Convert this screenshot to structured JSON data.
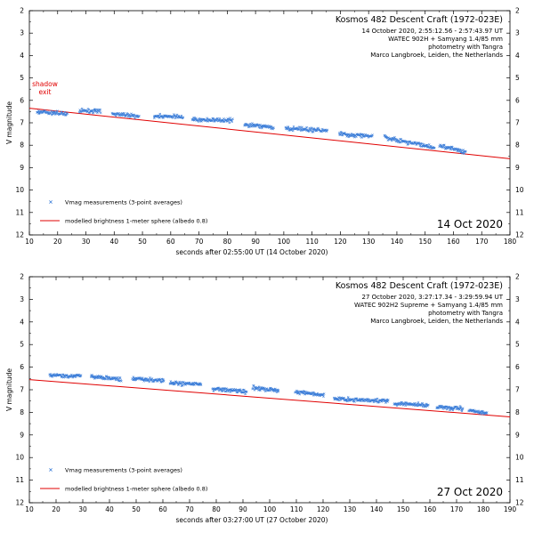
{
  "colors": {
    "measurement": "#3b7dd8",
    "model": "#e00000",
    "axis": "#000000"
  },
  "chart_data": [
    {
      "type": "scatter",
      "title": "Kosmos 482 Descent Craft  (1972-023E)",
      "info_lines": [
        "14 October 2020, 2:55:12.56 - 2:57:43.97 UT",
        "WATEC 902H  + Samyang 1.4/85 mm",
        "photometry with Tangra",
        "Marco Langbroek, Leiden, the Netherlands"
      ],
      "date_label": "14 Oct 2020",
      "xlabel": "seconds after 02:55:00 UT (14 October 2020)",
      "ylabel": "V magnitude",
      "xlim": [
        10,
        180
      ],
      "ylim": [
        12,
        2
      ],
      "xticks": [
        "10",
        "20",
        "30",
        "40",
        "50",
        "60",
        "70",
        "80",
        "90",
        "100",
        "110",
        "120",
        "130",
        "140",
        "150",
        "160",
        "170",
        "180"
      ],
      "yticks": [
        "2",
        "3",
        "4",
        "5",
        "6",
        "7",
        "8",
        "9",
        "10",
        "11",
        "12"
      ],
      "annotation": {
        "text": [
          "shadow",
          "exit"
        ],
        "x": 15.5,
        "y": 5.5
      },
      "legend": [
        {
          "marker": "x",
          "label": "Vmag measurements (3-point averages)"
        },
        {
          "marker": "line",
          "label": "modelled brightness 1-meter sphere (albedo 0.8)"
        }
      ],
      "series": [
        {
          "name": "Vmag measurements (3-point averages)",
          "kind": "points",
          "clusters": [
            {
              "x_range": [
                12.6,
                23.5
              ],
              "y_start": 6.5,
              "y_end": 6.6
            },
            {
              "x_range": [
                27.6,
                35.3
              ],
              "y_start": 6.45,
              "y_end": 6.5
            },
            {
              "x_range": [
                39.2,
                48.9
              ],
              "y_start": 6.6,
              "y_end": 6.7
            },
            {
              "x_range": [
                54.0,
                64.5
              ],
              "y_start": 6.7,
              "y_end": 6.75
            },
            {
              "x_range": [
                67.5,
                82.0
              ],
              "y_start": 6.85,
              "y_end": 6.9
            },
            {
              "x_range": [
                86.0,
                96.5
              ],
              "y_start": 7.1,
              "y_end": 7.2
            },
            {
              "x_range": [
                100.5,
                115.5
              ],
              "y_start": 7.25,
              "y_end": 7.35
            },
            {
              "x_range": [
                119.5,
                131.5
              ],
              "y_start": 7.5,
              "y_end": 7.6
            },
            {
              "x_range": [
                135.5,
                153.5
              ],
              "y_start": 7.65,
              "y_end": 8.1
            },
            {
              "x_range": [
                155.0,
                164.5
              ],
              "y_start": 8.0,
              "y_end": 8.3
            }
          ]
        },
        {
          "name": "modelled brightness 1-meter sphere (albedo 0.8)",
          "kind": "line",
          "x": [
            10,
            180
          ],
          "y": [
            6.35,
            8.6
          ]
        }
      ]
    },
    {
      "type": "scatter",
      "title": "Kosmos 482 Descent Craft  (1972-023E)",
      "info_lines": [
        "27 October 2020, 3:27:17.34 - 3:29:59.94 UT",
        "WATEC 902H2 Supreme + Samyang 1.4/85 mm",
        "photometry with Tangra",
        "Marco Langbroek, Leiden, the Netherlands"
      ],
      "date_label": "27 Oct 2020",
      "xlabel": "seconds after 03:27:00 UT (27 October 2020)",
      "ylabel": "V magnitude",
      "xlim": [
        10,
        190
      ],
      "ylim": [
        12,
        2
      ],
      "xticks": [
        "10",
        "20",
        "30",
        "40",
        "50",
        "60",
        "70",
        "80",
        "90",
        "100",
        "110",
        "120",
        "130",
        "140",
        "150",
        "160",
        "170",
        "180",
        "190"
      ],
      "yticks": [
        "2",
        "3",
        "4",
        "5",
        "6",
        "7",
        "8",
        "9",
        "10",
        "11",
        "12"
      ],
      "legend": [
        {
          "marker": "x",
          "label": "Vmag measurements (3-point averages)"
        },
        {
          "marker": "line",
          "label": "modelled brightness 1-meter sphere (albedo 0.8)"
        }
      ],
      "series": [
        {
          "name": "Vmag measurements (3-point averages)",
          "kind": "points",
          "clusters": [
            {
              "x_range": [
                17.5,
                29.5
              ],
              "y_start": 6.35,
              "y_end": 6.4
            },
            {
              "x_range": [
                33.0,
                44.5
              ],
              "y_start": 6.4,
              "y_end": 6.55
            },
            {
              "x_range": [
                48.5,
                60.5
              ],
              "y_start": 6.5,
              "y_end": 6.6
            },
            {
              "x_range": [
                62.5,
                74.5
              ],
              "y_start": 6.7,
              "y_end": 6.75
            },
            {
              "x_range": [
                78.5,
                91.5
              ],
              "y_start": 6.95,
              "y_end": 7.1
            },
            {
              "x_range": [
                93.5,
                103.5
              ],
              "y_start": 6.9,
              "y_end": 7.05
            },
            {
              "x_range": [
                109.5,
                120.5
              ],
              "y_start": 7.1,
              "y_end": 7.25
            },
            {
              "x_range": [
                124.0,
                144.5
              ],
              "y_start": 7.4,
              "y_end": 7.5
            },
            {
              "x_range": [
                146.5,
                159.5
              ],
              "y_start": 7.6,
              "y_end": 7.7
            },
            {
              "x_range": [
                162.5,
                172.5
              ],
              "y_start": 7.75,
              "y_end": 7.85
            },
            {
              "x_range": [
                174.5,
                181.5
              ],
              "y_start": 7.9,
              "y_end": 8.05
            }
          ]
        },
        {
          "name": "modelled brightness 1-meter sphere (albedo 0.8)",
          "kind": "line",
          "x": [
            10,
            190
          ],
          "y": [
            6.55,
            8.2
          ]
        }
      ]
    }
  ]
}
